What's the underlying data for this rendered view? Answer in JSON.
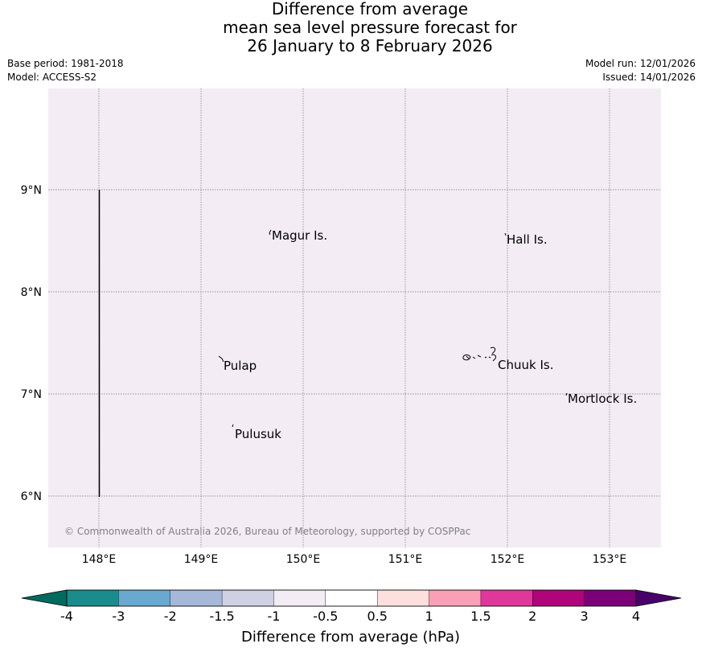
{
  "title": {
    "line1": "Difference from average",
    "line2": "mean sea level pressure forecast for",
    "line3": "26 January to 8 February 2026"
  },
  "meta": {
    "base_period": "Base period: 1981-2018",
    "model": "Model: ACCESS-S2",
    "model_run": "Model run: 12/01/2026",
    "issued": "Issued: 14/01/2026"
  },
  "map": {
    "background_color": "#f3ecf5",
    "lon_ticks": [
      "148°E",
      "149°E",
      "150°E",
      "151°E",
      "152°E",
      "153°E"
    ],
    "lat_ticks": [
      "9°N",
      "8°N",
      "7°N",
      "6°N"
    ],
    "places": [
      {
        "name": "Magur Is."
      },
      {
        "name": "Hall Is."
      },
      {
        "name": "Pulap"
      },
      {
        "name": "Chuuk Is."
      },
      {
        "name": "Mortlock Is."
      },
      {
        "name": "Pulusuk"
      }
    ],
    "copyright": "© Commonwealth of Australia 2026, Bureau of Meteorology, supported by COSPPac"
  },
  "colorbar": {
    "title": "Difference from average (hPa)",
    "labels": [
      "-4",
      "-3",
      "-2",
      "-1.5",
      "-1",
      "-0.5",
      "0.5",
      "1",
      "1.5",
      "2",
      "3",
      "4"
    ],
    "colors": [
      "#1a8c8c",
      "#69a9cf",
      "#a6b8da",
      "#d0d0e4",
      "#f3ecf5",
      "#ffffff",
      "#fde0dd",
      "#fa9fb5",
      "#e0379b",
      "#b0047a",
      "#7a0177"
    ],
    "under_color": "#006b5e",
    "over_color": "#49006a"
  }
}
